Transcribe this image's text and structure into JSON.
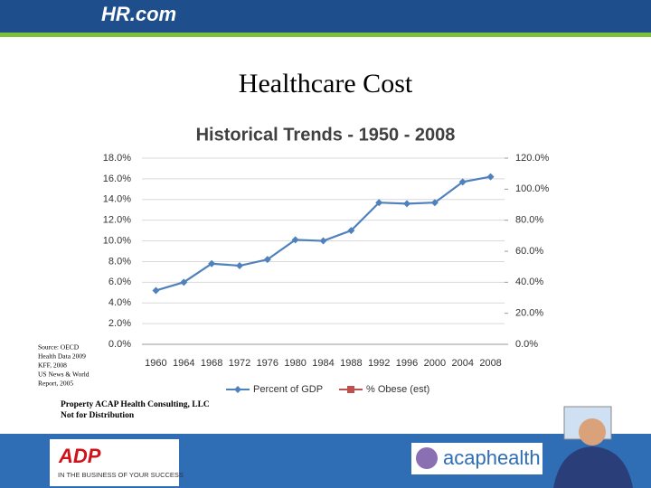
{
  "header": {
    "logo": "HR.com"
  },
  "slide_title": "Healthcare Cost",
  "source_lines": [
    "Source: OECD",
    "Health Data 2009",
    "KFF, 2008",
    "US News & World",
    "Report, 2005"
  ],
  "notice_lines": [
    "Property ACAP Health Consulting, LLC",
    "Not for Distribution"
  ],
  "footer": {
    "left_logo": "ADP",
    "left_tagline": "IN THE BUSINESS OF YOUR SUCCESS",
    "right_logo": "acaphealth"
  },
  "chart_data": {
    "type": "line",
    "title": "Historical Trends - 1950 - 2008",
    "categories": [
      "1960",
      "1964",
      "1968",
      "1972",
      "1976",
      "1980",
      "1984",
      "1988",
      "1992",
      "1996",
      "2000",
      "2004",
      "2008"
    ],
    "series": [
      {
        "name": "Percent of GDP",
        "color": "#4f81bd",
        "values": [
          5.2,
          6.0,
          7.8,
          7.6,
          8.2,
          10.1,
          10.0,
          11.0,
          13.7,
          13.6,
          13.7,
          15.7,
          16.2
        ]
      },
      {
        "name": "% Obese (est)",
        "color": "#c0504d",
        "axis": "y2",
        "values": [
          null,
          null,
          null,
          null,
          null,
          null,
          null,
          null,
          null,
          null,
          null,
          null,
          null
        ]
      }
    ],
    "ylim": [
      0,
      18
    ],
    "yticks": [
      {
        "value": 0,
        "label": "0.0%"
      },
      {
        "value": 2,
        "label": "2.0%"
      },
      {
        "value": 4,
        "label": "4.0%"
      },
      {
        "value": 6,
        "label": "6.0%"
      },
      {
        "value": 8,
        "label": "8.0%"
      },
      {
        "value": 10,
        "label": "10.0%"
      },
      {
        "value": 12,
        "label": "12.0%"
      },
      {
        "value": 14,
        "label": "14.0%"
      },
      {
        "value": 16,
        "label": "16.0%"
      },
      {
        "value": 18,
        "label": "18.0%"
      }
    ],
    "y2lim": [
      0,
      120
    ],
    "y2ticks": [
      {
        "value": 0,
        "label": "0.0%"
      },
      {
        "value": 20,
        "label": "20.0%"
      },
      {
        "value": 40,
        "label": "40.0%"
      },
      {
        "value": 60,
        "label": "60.0%"
      },
      {
        "value": 80,
        "label": "80.0%"
      },
      {
        "value": 100,
        "label": "100.0%"
      },
      {
        "value": 120,
        "label": "120.0%"
      }
    ],
    "grid": true,
    "legend": "bottom"
  }
}
